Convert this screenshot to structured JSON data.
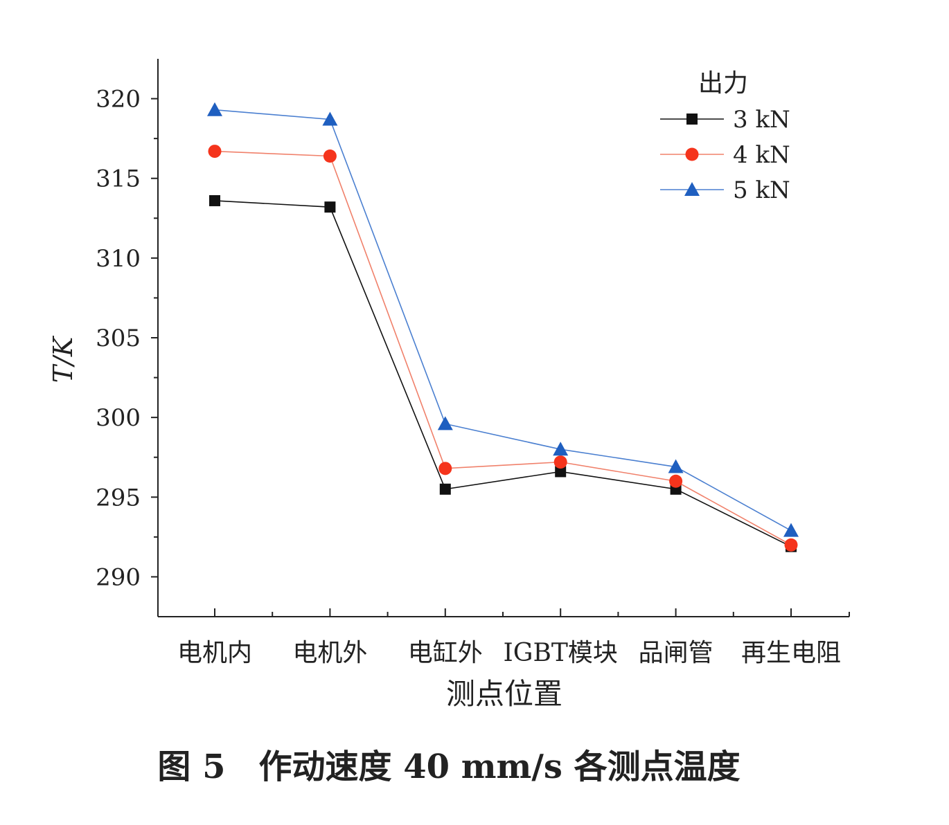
{
  "chart_data": {
    "type": "line",
    "title": "图 5　作动速度 40 mm/s 各测点温度",
    "xlabel": "测点位置",
    "ylabel": "T/K",
    "categories": [
      "电机内",
      "电机外",
      "电缸外",
      "IGBT模块",
      "品闸管",
      "再生电阻"
    ],
    "ylim": [
      287.5,
      322.5
    ],
    "yticks": [
      290,
      295,
      300,
      305,
      310,
      315,
      320
    ],
    "grid": false,
    "legend": {
      "title": "出力",
      "placement": "top-right"
    },
    "series": [
      {
        "name": "3 kN",
        "marker": "square",
        "color": "#111111",
        "markerColor": "#111111",
        "values": [
          313.6,
          313.2,
          295.5,
          296.6,
          295.5,
          291.9
        ]
      },
      {
        "name": "4 kN",
        "marker": "circle",
        "color": "#f0806a",
        "markerColor": "#f5341c",
        "values": [
          316.7,
          316.4,
          296.8,
          297.2,
          296.0,
          292.0
        ]
      },
      {
        "name": "5 kN",
        "marker": "triangle",
        "color": "#4a7fd0",
        "markerColor": "#1f5fc0",
        "values": [
          319.3,
          318.7,
          299.6,
          298.0,
          296.9,
          292.9
        ]
      }
    ]
  }
}
